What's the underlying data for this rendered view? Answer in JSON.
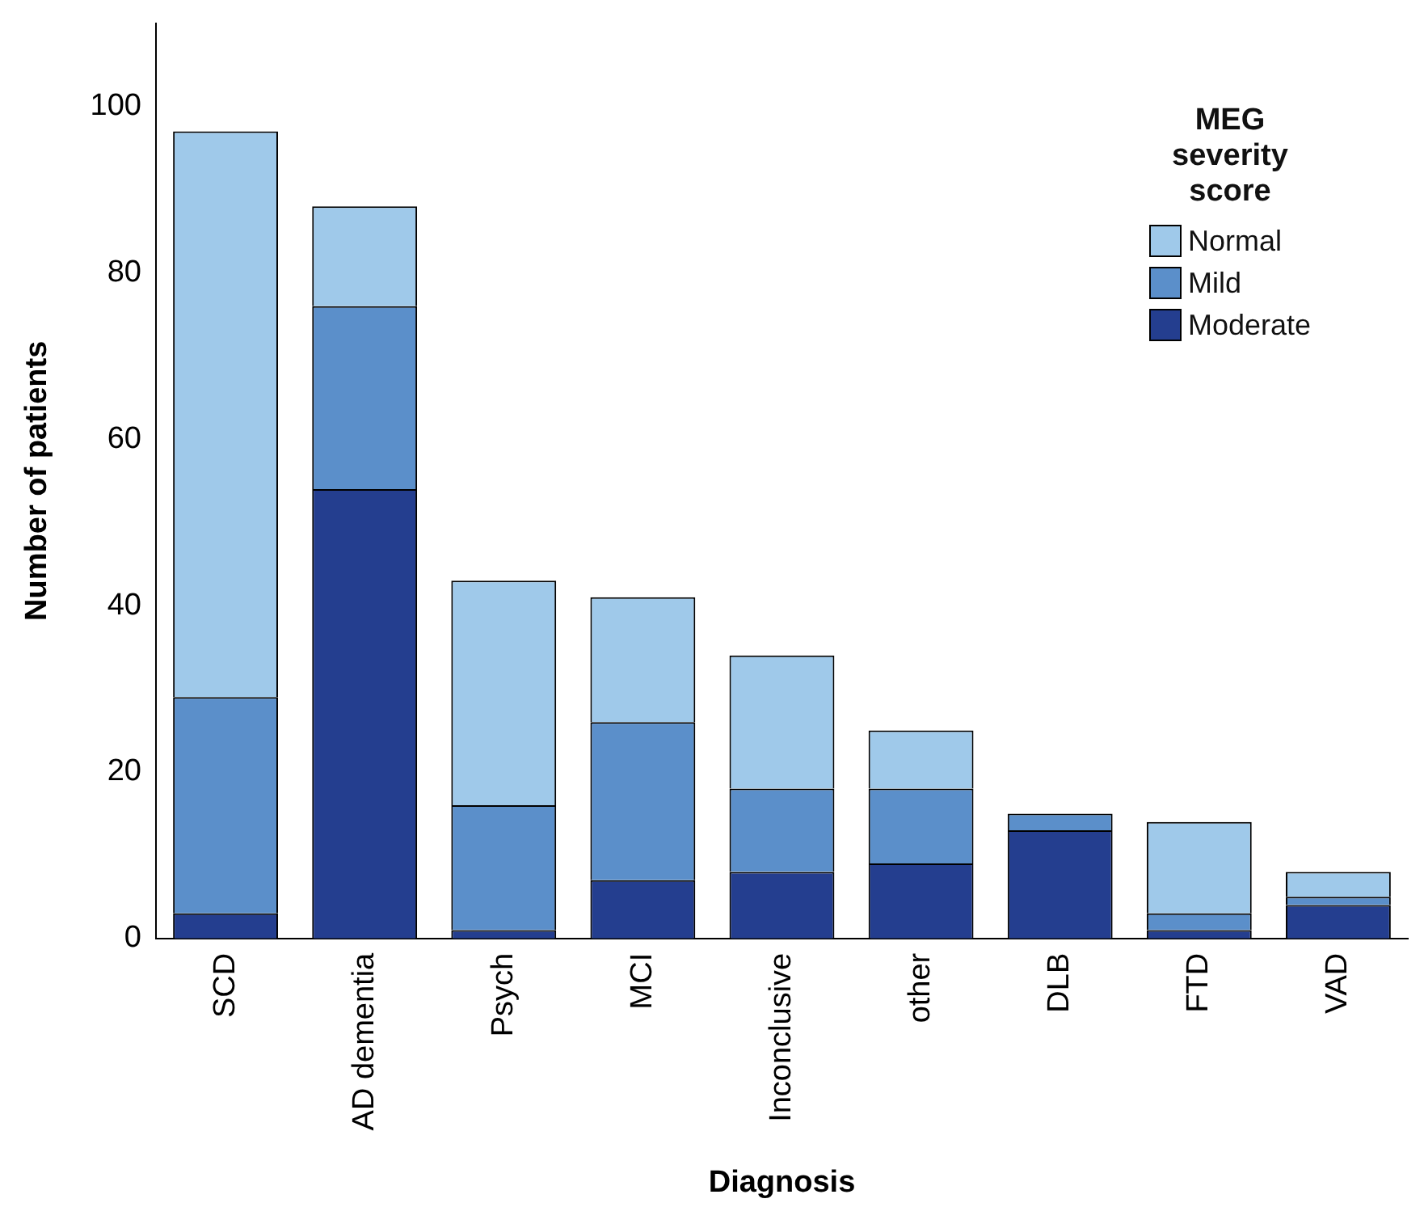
{
  "chart_data": {
    "type": "bar",
    "stacked": true,
    "xlabel": "Diagnosis",
    "ylabel": "Number of patients",
    "legend_title": "MEG severity score",
    "legend": "top right",
    "grid": false,
    "categories": [
      "SCD",
      "AD dementia",
      "Psych",
      "MCI",
      "Inconclusive",
      "other",
      "DLB",
      "FTD",
      "VAD"
    ],
    "ylim": [
      0,
      110
    ],
    "yticks": [
      0,
      20,
      40,
      60,
      80,
      100
    ],
    "series": [
      {
        "name": "Moderate",
        "color": "#243e8f",
        "values": [
          3,
          54,
          1,
          7,
          8,
          9,
          13,
          1,
          4
        ]
      },
      {
        "name": "Mild",
        "color": "#5b8fca",
        "values": [
          26,
          22,
          15,
          19,
          10,
          9,
          2,
          2,
          1
        ]
      },
      {
        "name": "Normal",
        "color": "#9fc9ea",
        "values": [
          68,
          12,
          27,
          15,
          16,
          7,
          0,
          11,
          3
        ]
      }
    ]
  }
}
